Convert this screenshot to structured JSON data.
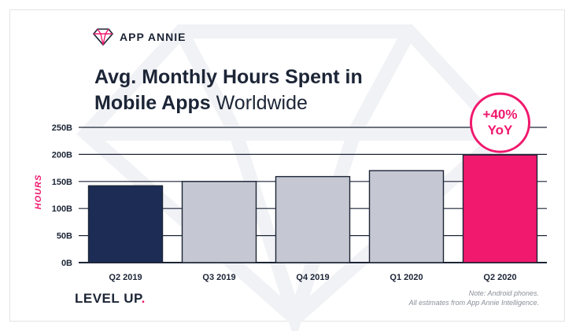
{
  "brand": {
    "name": "APP ANNIE",
    "logo_icon": "diamond-icon"
  },
  "title": {
    "bold_part": "Avg. Monthly Hours Spent in",
    "bold_part2": "Mobile Apps",
    "light_part": "Worldwide"
  },
  "footer": {
    "tagline": "LEVEL UP",
    "tagline_dot": ".",
    "note_line1": "Note: Android phones.",
    "note_line2": "All estimates from App Annie Intelligence."
  },
  "badge": {
    "line1": "+40%",
    "line2": "YoY"
  },
  "colors": {
    "accent": "#f0196e",
    "navy": "#1c2c55",
    "gray_bar": "#c5c8d2",
    "ink": "#1c2536"
  },
  "chart_data": {
    "type": "bar",
    "title": "Avg. Monthly Hours Spent in Mobile Apps Worldwide",
    "ylabel": "HOURS",
    "xlabel": "",
    "categories": [
      "Q2 2019",
      "Q3 2019",
      "Q4 2019",
      "Q1 2020",
      "Q2 2020"
    ],
    "values": [
      142,
      150,
      159,
      170,
      199
    ],
    "bar_colors": [
      "#1c2c55",
      "#c5c8d2",
      "#c5c8d2",
      "#c5c8d2",
      "#f0196e"
    ],
    "ylim": [
      0,
      250
    ],
    "yticks": [
      0,
      50,
      100,
      150,
      200,
      250
    ],
    "ytick_labels": [
      "0B",
      "50B",
      "100B",
      "150B",
      "200B",
      "250B"
    ],
    "grid": true
  }
}
